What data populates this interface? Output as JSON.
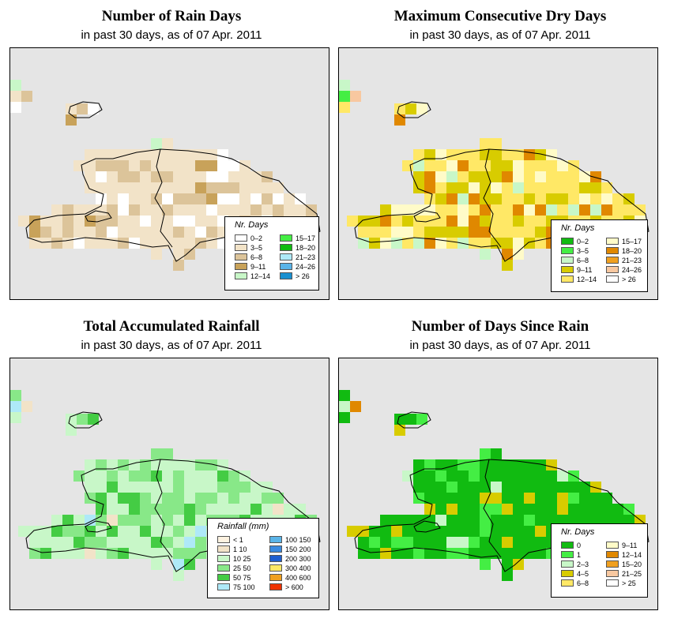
{
  "panels": [
    {
      "id": "rain_days",
      "title": "Number of Rain Days",
      "subtitle": "in past 30 days, as of  07 Apr. 2011",
      "legend": {
        "title": "Nr. Days",
        "items": [
          {
            "label": "0–2",
            "color": "#ffffff"
          },
          {
            "label": "3–5",
            "color": "#f2e3c8"
          },
          {
            "label": "6–8",
            "color": "#dcc49a"
          },
          {
            "label": "9–11",
            "color": "#c8a25a"
          },
          {
            "label": "12–14",
            "color": "#c8f7c8"
          },
          {
            "label": "15–17",
            "color": "#44ee44"
          },
          {
            "label": "18–20",
            "color": "#11bb11"
          },
          {
            "label": "21–23",
            "color": "#aee9f8"
          },
          {
            "label": "24–26",
            "color": "#5ab4e8"
          },
          {
            "label": "> 26",
            "color": "#1a90d0"
          }
        ]
      },
      "palette": [
        "#f2e3c8",
        "#dcc49a",
        "#ffffff",
        "#c8a25a",
        "#c8f7c8"
      ]
    },
    {
      "id": "max_dry_days",
      "title": "Maximum Consecutive Dry Days",
      "subtitle": "in past 30 days, as of  07 Apr. 2011",
      "legend": {
        "title": "Nr. Days",
        "items": [
          {
            "label": "0–2",
            "color": "#11bb11"
          },
          {
            "label": "3–5",
            "color": "#44ee44"
          },
          {
            "label": "6–8",
            "color": "#c8f7c8"
          },
          {
            "label": "9–11",
            "color": "#d8cc00"
          },
          {
            "label": "12–14",
            "color": "#ffe866"
          },
          {
            "label": "15–17",
            "color": "#fffbc8"
          },
          {
            "label": "18–20",
            "color": "#e08800"
          },
          {
            "label": "21–23",
            "color": "#f0a020"
          },
          {
            "label": "24–26",
            "color": "#f8c8a0"
          },
          {
            "label": "> 26",
            "color": "#ffffff"
          }
        ]
      },
      "palette": [
        "#ffe866",
        "#d8cc00",
        "#fffbc8",
        "#e08800",
        "#c8f7c8",
        "#44ee44",
        "#f8c8a0"
      ]
    },
    {
      "id": "total_rainfall",
      "title": "Total Accumulated Rainfall",
      "subtitle": "in past 30 days, as of  07 Apr. 2011",
      "legend": {
        "title": "Rainfall (mm)",
        "items": [
          {
            "label": "< 1",
            "color": "#fdf2e0"
          },
          {
            "label": "1   10",
            "color": "#f2e3c8"
          },
          {
            "label": "10   25",
            "color": "#c8f7c8"
          },
          {
            "label": "25   50",
            "color": "#88e888"
          },
          {
            "label": "50   75",
            "color": "#44cc44"
          },
          {
            "label": "75  100",
            "color": "#aee9f8"
          },
          {
            "label": "100  150",
            "color": "#5ab4e8"
          },
          {
            "label": "150  200",
            "color": "#3a8ae0"
          },
          {
            "label": "200  300",
            "color": "#1f5fd0"
          },
          {
            "label": "300  400",
            "color": "#ffe866"
          },
          {
            "label": "400  600",
            "color": "#f0a020"
          },
          {
            "label": "> 600",
            "color": "#ee3300"
          }
        ]
      },
      "palette": [
        "#c8f7c8",
        "#88e888",
        "#44cc44",
        "#c8f7c8",
        "#88e888",
        "#aee9f8",
        "#f2e3c8"
      ]
    },
    {
      "id": "days_since_rain",
      "title": "Number of Days Since Rain",
      "subtitle": "in past 30 days, as of  07 Apr. 2011",
      "legend": {
        "title": "Nr. Days",
        "items": [
          {
            "label": "0",
            "color": "#11bb11"
          },
          {
            "label": "1",
            "color": "#44ee44"
          },
          {
            "label": "2–3",
            "color": "#c8f7c8"
          },
          {
            "label": "4–5",
            "color": "#d8cc00"
          },
          {
            "label": "6–8",
            "color": "#ffe866"
          },
          {
            "label": "9–11",
            "color": "#fffbc8"
          },
          {
            "label": "12–14",
            "color": "#e08800"
          },
          {
            "label": "15–20",
            "color": "#f0a020"
          },
          {
            "label": "21–25",
            "color": "#f8c8a0"
          },
          {
            "label": "> 25",
            "color": "#ffffff"
          }
        ]
      },
      "palette": [
        "#11bb11",
        "#11bb11",
        "#44ee44",
        "#d8cc00",
        "#11bb11",
        "#c8f7c8",
        "#e08800"
      ]
    }
  ]
}
